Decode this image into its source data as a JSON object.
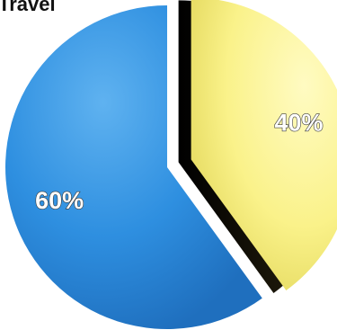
{
  "chart_data": {
    "type": "pie",
    "title": "Travel",
    "categories": [
      "",
      ""
    ],
    "values": [
      60,
      40
    ],
    "labels": [
      "60%",
      "40%"
    ],
    "colors": [
      "#2e8fe0",
      "#faf28a"
    ],
    "exploded_index": 1,
    "legend": false
  }
}
